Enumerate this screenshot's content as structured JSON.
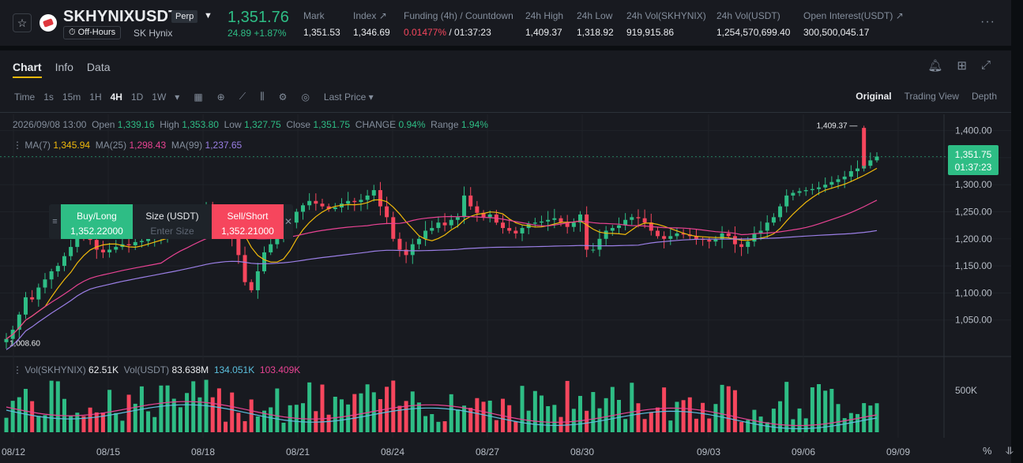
{
  "header": {
    "symbol": "SKHYNIXUSDT",
    "contract_type": "Perp",
    "status": "Off-Hours",
    "underlying": "SK Hynix",
    "last_price": "1,351.76",
    "change": "24.89 +1.87%",
    "stats": [
      {
        "label": "Mark",
        "value": "1,351.53"
      },
      {
        "label": "Index ↗",
        "value": "1,346.69"
      },
      {
        "label": "Funding (4h) / Countdown",
        "value_rate": "0.01477%",
        "value_time": " / 01:37:23"
      },
      {
        "label": "24h High",
        "value": "1,409.37"
      },
      {
        "label": "24h Low",
        "value": "1,318.92"
      },
      {
        "label": "24h Vol(SKHYNIX)",
        "value": "919,915.86"
      },
      {
        "label": "24h Vol(USDT)",
        "value": "1,254,570,699.40"
      },
      {
        "label": "Open Interest(USDT) ↗",
        "value": "300,500,045.17"
      }
    ],
    "more_icon": "more-dots-icon",
    "star_icon": "star-icon"
  },
  "tabs": [
    "Chart",
    "Info",
    "Data"
  ],
  "toolbar": {
    "intervals": [
      "Time",
      "1s",
      "15m",
      "1H",
      "4H",
      "1D",
      "1W"
    ],
    "active_interval": "4H",
    "price_type": "Last Price ▾",
    "views": [
      "Original",
      "Trading View",
      "Depth"
    ],
    "active_view": "Original"
  },
  "ohlc": {
    "date": "2026/09/08 13:00",
    "open_label": "Open",
    "open": "1,339.16",
    "high_label": "High",
    "high": "1,353.80",
    "low_label": "Low",
    "low": "1,327.75",
    "close_label": "Close",
    "close": "1,351.75",
    "change_label": "CHANGE",
    "change": "0.94%",
    "range_label": "Range",
    "range": "1.94%"
  },
  "ma": {
    "ma7_label": "MA(7)",
    "ma7": "1,345.94",
    "ma25_label": "MA(25)",
    "ma25": "1,298.43",
    "ma99_label": "MA(99)",
    "ma99": "1,237.65"
  },
  "order_panel": {
    "buy_label": "Buy/Long",
    "buy_price": "1,352.22000",
    "size_label": "Size (USDT)",
    "size_placeholder": "Enter Size",
    "sell_label": "Sell/Short",
    "sell_price": "1,352.21000"
  },
  "price_tag": {
    "price": "1,351.75",
    "countdown": "01:37:23"
  },
  "volume": {
    "label1": "Vol(SKHYNIX)",
    "value1": "62.51K",
    "label2": "Vol(USDT)",
    "value2": "83.638M",
    "value3": "134.051K",
    "value4": "103.409K"
  },
  "bottom_icons": [
    "%",
    "fit-icon"
  ],
  "colors": {
    "up": "#2ebd85",
    "down": "#f6465d",
    "ma7": "#f0b90b",
    "ma25": "#e84393",
    "ma99": "#9b7fe6",
    "vol_ma1": "#5bc0de",
    "vol_ma2": "#e84393"
  },
  "chart_data": {
    "type": "candlestick",
    "y_axis_ticks": [
      "1,400.00",
      "1,350.00",
      "1,300.00",
      "1,250.00",
      "1,200.00",
      "1,150.00",
      "1,100.00",
      "1,050.00"
    ],
    "x_axis_ticks": [
      "08/12",
      "08/15",
      "08/18",
      "08/21",
      "08/24",
      "08/27",
      "08/30",
      "09/03",
      "09/06",
      "09/09"
    ],
    "volume_axis_tick": "500K",
    "ylim": [
      1000,
      1430
    ],
    "high_marker": "1,409.37",
    "low_marker": "1,008.60",
    "closes": [
      1015,
      1032,
      1060,
      1092,
      1088,
      1110,
      1125,
      1140,
      1150,
      1168,
      1185,
      1210,
      1205,
      1198,
      1180,
      1175,
      1180,
      1185,
      1190,
      1188,
      1194,
      1196,
      1200,
      1205,
      1210,
      1215,
      1220,
      1228,
      1235,
      1242,
      1250,
      1258,
      1245,
      1230,
      1220,
      1200,
      1170,
      1120,
      1105,
      1140,
      1175,
      1190,
      1200,
      1210,
      1230,
      1250,
      1262,
      1270,
      1265,
      1260,
      1255,
      1258,
      1265,
      1270,
      1268,
      1272,
      1280,
      1290,
      1260,
      1240,
      1200,
      1180,
      1170,
      1190,
      1200,
      1215,
      1220,
      1230,
      1225,
      1235,
      1240,
      1280,
      1260,
      1248,
      1240,
      1245,
      1230,
      1220,
      1215,
      1210,
      1220,
      1228,
      1230,
      1232,
      1235,
      1238,
      1230,
      1222,
      1230,
      1245,
      1180,
      1180,
      1200,
      1215,
      1220,
      1225,
      1235,
      1240,
      1238,
      1230,
      1215,
      1205,
      1200,
      1205,
      1210,
      1208,
      1205,
      1200,
      1198,
      1195,
      1200,
      1210,
      1205,
      1190,
      1185,
      1195,
      1210,
      1215,
      1230,
      1240,
      1260,
      1280,
      1285,
      1288,
      1290,
      1292,
      1295,
      1300,
      1305,
      1310,
      1315,
      1325,
      1330,
      1335,
      1345,
      1352
    ],
    "ma7_end": 1345.94,
    "ma25_end": 1298.43,
    "ma99_end": 1237.65
  }
}
